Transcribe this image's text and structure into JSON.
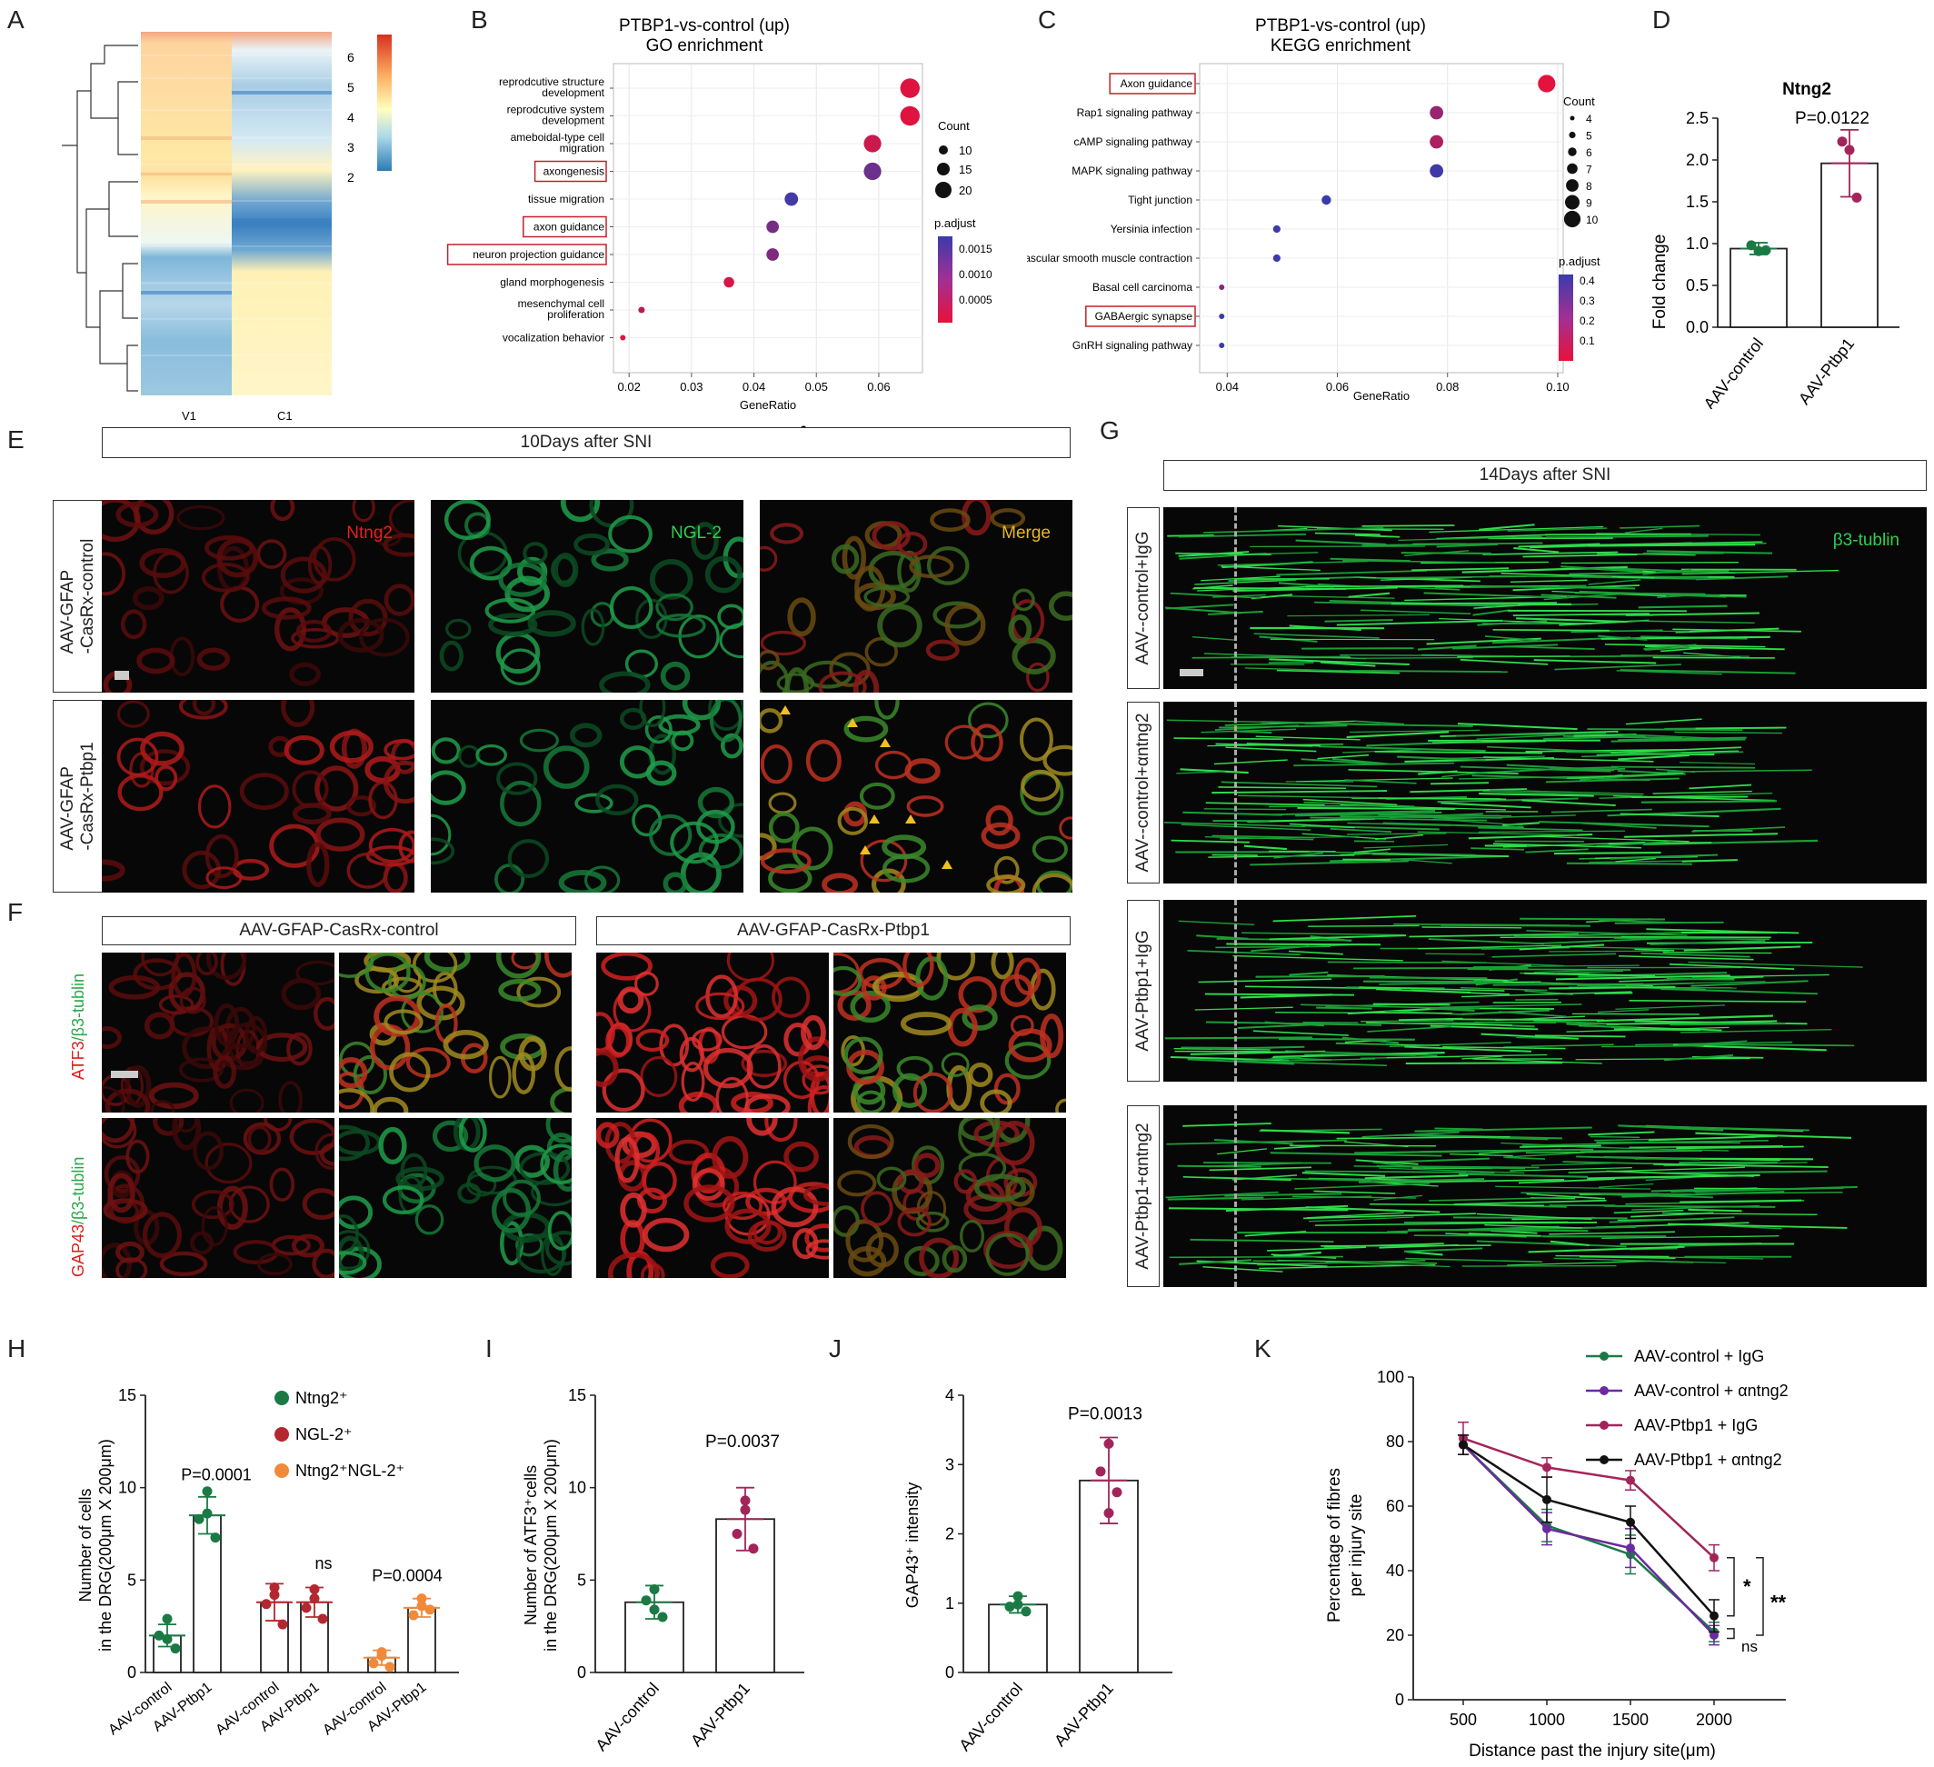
{
  "panels": {
    "A": "A",
    "B": "B",
    "C": "C",
    "D": "D",
    "E": "E",
    "F": "F",
    "G": "G",
    "H": "H",
    "I": "I",
    "J": "J",
    "K": "K"
  },
  "heatmap": {
    "columns": [
      "V1",
      "C1"
    ],
    "colorbar_ticks": [
      "6",
      "5",
      "4",
      "3",
      "2"
    ],
    "colors": {
      "high": "#d7301f",
      "mid": "#fff7bc",
      "low": "#2c7bb6"
    }
  },
  "go": {
    "title_line1": "PTBP1-vs-control (up)",
    "title_line2": "GO enrichment",
    "terms": [
      "reprodcutive structure development",
      "reprodcutive system development",
      "ameboidal-type cell migration",
      "axongenesis",
      "tissue migration",
      "axon guidance",
      "neuron projection guidance",
      "gland morphogenesis",
      "mesenchymal cell proliferation",
      "vocalization behavior"
    ],
    "boxed_terms": [
      "axongenesis",
      "axon guidance",
      "neuron projection guidance"
    ],
    "xlabel": "GeneRatio",
    "xticks": [
      "0.02",
      "0.03",
      "0.04",
      "0.05",
      "0.06"
    ],
    "footer": "6",
    "count_legend_title": "Count",
    "count_legend": [
      "10",
      "15",
      "20"
    ],
    "padj_title": "p.adjust",
    "padj_ticks": [
      "0.0015",
      "0.0010",
      "0.0005"
    ]
  },
  "kegg": {
    "title_line1": "PTBP1-vs-control (up)",
    "title_line2": "KEGG enrichment",
    "terms": [
      "Axon guidance",
      "Rap1 signaling pathway",
      "cAMP signaling pathway",
      "MAPK signaling pathway",
      "Tight junction",
      "Yersinia infection",
      "Vascular smooth muscle contraction",
      "Basal cell carcinoma",
      "GABAergic synapse",
      "GnRH signaling pathway"
    ],
    "boxed_terms": [
      "Axon guidance",
      "GABAergic synapse"
    ],
    "xlabel": "GeneRatio",
    "xticks": [
      "0.04",
      "0.06",
      "0.08",
      "0.10"
    ],
    "count_legend_title": "Count",
    "count_legend": [
      "4",
      "5",
      "6",
      "7",
      "8",
      "9",
      "10"
    ],
    "padj_title": "p.adjust",
    "padj_ticks": [
      "0.4",
      "0.3",
      "0.2",
      "0.1"
    ]
  },
  "panel_d": {
    "title": "Ntng2",
    "ylabel": "Fold change",
    "pvalue": "P=0.0122",
    "yticks": [
      "0.0",
      "0.5",
      "1.0",
      "1.5",
      "2.0",
      "2.5"
    ],
    "categories": [
      "AAV-control",
      "AAV-Ptbp1"
    ]
  },
  "panel_e": {
    "header": "10Days after SNI",
    "rows": [
      "AAV-GFAP -CasRx-control",
      "AAV-GFAP -CasRx-Ptbp1"
    ],
    "row_line1": [
      "AAV-GFAP",
      "AAV-GFAP"
    ],
    "row_line2": [
      "-CasRx-control",
      "-CasRx-Ptbp1"
    ],
    "channels": [
      "Ntng2",
      "NGL-2",
      "Merge"
    ]
  },
  "panel_f": {
    "headers": [
      "AAV-GFAP-CasRx-control",
      "AAV-GFAP-CasRx-Ptbp1"
    ],
    "row1_red": "ATF3",
    "row1_green": "/β3-tublin",
    "row2_red": "GAP43",
    "row2_green": "/β3-tublin"
  },
  "panel_g": {
    "header": "14Days after SNI",
    "rows": [
      "AAV--control+IgG",
      "AAV--control+αntng2",
      "AAV-Ptbp1+IgG",
      "AAV-Ptbp1+αntng2"
    ],
    "stain": "β3-tublin"
  },
  "panel_h": {
    "ylabel_line1": "Number of cells",
    "ylabel_line2": "in the DRG(200μm X 200μm)",
    "yticks": [
      "0",
      "5",
      "10",
      "15"
    ],
    "legend": [
      "Ntng2⁺",
      "NGL-2⁺",
      "Ntng2⁺NGL-2⁺"
    ],
    "annotations": [
      "P=0.0001",
      "ns",
      "P=0.0004"
    ],
    "categories": [
      "AAV-control",
      "AAV-Ptbp1",
      "AAV-control",
      "AAV-Ptbp1",
      "AAV-control",
      "AAV-Ptbp1"
    ]
  },
  "panel_i": {
    "ylabel_line1": "Number of ATF3⁺cells",
    "ylabel_line2": "in the DRG(200μm X 200μm)",
    "yticks": [
      "0",
      "5",
      "10",
      "15"
    ],
    "pvalue": "P=0.0037",
    "categories": [
      "AAV-control",
      "AAV-Ptbp1"
    ]
  },
  "panel_j": {
    "ylabel": "GAP43⁺ intensity",
    "yticks": [
      "0",
      "1",
      "2",
      "3",
      "4"
    ],
    "pvalue": "P=0.0013",
    "categories": [
      "AAV-control",
      "AAV-Ptbp1"
    ]
  },
  "panel_k": {
    "ylabel_line1": "Percentage of fibres",
    "ylabel_line2": "per injury site",
    "xlabel": "Distance past the injury site(μm)",
    "yticks": [
      "0",
      "20",
      "40",
      "60",
      "80",
      "100"
    ],
    "xticks": [
      "500",
      "1000",
      "1500",
      "2000"
    ],
    "legend": [
      "AAV-control + IgG",
      "AAV-control + αntng2",
      "AAV-Ptbp1 + IgG",
      "AAV-Ptbp1 + αntng2"
    ],
    "sig": [
      "*",
      "**",
      "ns"
    ]
  },
  "chart_data": [
    {
      "type": "bar",
      "panel": "D",
      "title": "Ntng2",
      "categories": [
        "AAV-control",
        "AAV-Ptbp1"
      ],
      "values": [
        0.94,
        1.96
      ],
      "errors": [
        0.07,
        0.4
      ],
      "points": [
        [
          0.98,
          0.92,
          0.91
        ],
        [
          2.22,
          1.55,
          2.12
        ]
      ],
      "ylabel": "Fold change",
      "ylim": [
        0,
        2.5
      ],
      "colors": [
        "#1b7a44",
        "#a3245a"
      ]
    },
    {
      "type": "bar",
      "panel": "H",
      "categories": [
        "AAV-control",
        "AAV-Ptbp1",
        "AAV-control",
        "AAV-Ptbp1",
        "AAV-control",
        "AAV-Ptbp1"
      ],
      "values": [
        2.0,
        8.5,
        3.8,
        3.8,
        0.8,
        3.5
      ],
      "errors": [
        0.6,
        1.0,
        1.0,
        0.8,
        0.4,
        0.5
      ],
      "points": [
        [
          2.9,
          2.0,
          1.3,
          1.8
        ],
        [
          9.8,
          8.3,
          7.3,
          8.6
        ],
        [
          4.6,
          3.7,
          2.6,
          4.2
        ],
        [
          4.5,
          3.5,
          2.9,
          4.0
        ],
        [
          0.9,
          0.5,
          0.3,
          1.1
        ],
        [
          4.0,
          3.1,
          3.4,
          3.6
        ]
      ],
      "series_colors": [
        "#1b7a44",
        "#b3282e",
        "#f08a3a"
      ],
      "ylabel": "Number of cells in the DRG(200μm X 200μm)",
      "ylim": [
        0,
        15
      ]
    },
    {
      "type": "bar",
      "panel": "I",
      "categories": [
        "AAV-control",
        "AAV-Ptbp1"
      ],
      "values": [
        3.8,
        8.3
      ],
      "errors": [
        0.9,
        1.7
      ],
      "points": [
        [
          4.5,
          3.9,
          3.0,
          3.4
        ],
        [
          9.3,
          7.5,
          6.7,
          8.8
        ]
      ],
      "ylabel": "Number of ATF3⁺cells in the DRG(200μm X 200μm)",
      "ylim": [
        0,
        15
      ],
      "colors": [
        "#1b7a44",
        "#a3245a"
      ]
    },
    {
      "type": "bar",
      "panel": "J",
      "categories": [
        "AAV-control",
        "AAV-Ptbp1"
      ],
      "values": [
        0.98,
        2.77
      ],
      "errors": [
        0.12,
        0.62
      ],
      "points": [
        [
          1.1,
          0.95,
          0.88,
          0.98
        ],
        [
          3.3,
          2.9,
          2.6,
          2.3
        ]
      ],
      "ylabel": "GAP43⁺ intensity",
      "ylim": [
        0,
        4
      ],
      "colors": [
        "#1b7a44",
        "#a3245a"
      ]
    },
    {
      "type": "line",
      "panel": "K",
      "x": [
        500,
        1000,
        1500,
        2000
      ],
      "series": [
        {
          "name": "AAV-control + IgG",
          "values": [
            79,
            54,
            45,
            21
          ],
          "errors": [
            3,
            5,
            6,
            3
          ],
          "color": "#1b7a44"
        },
        {
          "name": "AAV-control + αntng2",
          "values": [
            79,
            53,
            47,
            20
          ],
          "errors": [
            3,
            5,
            6,
            3
          ],
          "color": "#6b2a9e"
        },
        {
          "name": "AAV-Ptbp1 + IgG",
          "values": [
            81,
            72,
            68,
            44
          ],
          "errors": [
            5,
            3,
            3,
            4
          ],
          "color": "#a3245a"
        },
        {
          "name": "AAV-Ptbp1 + αntng2",
          "values": [
            79,
            62,
            55,
            26
          ],
          "errors": [
            3,
            7,
            5,
            5
          ],
          "color": "#111111"
        }
      ],
      "xlabel": "Distance past the injury site(μm)",
      "ylabel": "Percentage of fibres per injury site",
      "ylim": [
        0,
        100
      ]
    },
    {
      "type": "scatter",
      "panel": "B",
      "terms": [
        "reprodcutive structure development",
        "reprodcutive system development",
        "ameboidal-type cell migration",
        "axongenesis",
        "tissue migration",
        "axon guidance",
        "neuron projection guidance",
        "gland morphogenesis",
        "mesenchymal cell proliferation",
        "vocalization behavior"
      ],
      "gene_ratio": [
        0.065,
        0.065,
        0.059,
        0.059,
        0.046,
        0.043,
        0.043,
        0.036,
        0.022,
        0.019
      ],
      "count": [
        20,
        20,
        18,
        18,
        14,
        13,
        13,
        11,
        7,
        6
      ],
      "p_adjust": [
        0.0001,
        0.0001,
        0.0003,
        0.0013,
        0.0017,
        0.0012,
        0.0011,
        0.0002,
        0.0005,
        0.0001
      ],
      "xlabel": "GeneRatio"
    },
    {
      "type": "scatter",
      "panel": "C",
      "terms": [
        "Axon guidance",
        "Rap1 signaling pathway",
        "cAMP signaling pathway",
        "MAPK signaling pathway",
        "Tight junction",
        "Yersinia infection",
        "Vascular smooth muscle contraction",
        "Basal cell carcinoma",
        "GABAergic synapse",
        "GnRH signaling pathway"
      ],
      "gene_ratio": [
        0.098,
        0.078,
        0.078,
        0.078,
        0.058,
        0.049,
        0.049,
        0.039,
        0.039,
        0.039
      ],
      "count": [
        10,
        8,
        8,
        8,
        6,
        5,
        5,
        4,
        4,
        4
      ],
      "p_adjust": [
        0.01,
        0.2,
        0.15,
        0.42,
        0.43,
        0.43,
        0.43,
        0.25,
        0.43,
        0.43
      ],
      "xlabel": "GeneRatio"
    }
  ]
}
